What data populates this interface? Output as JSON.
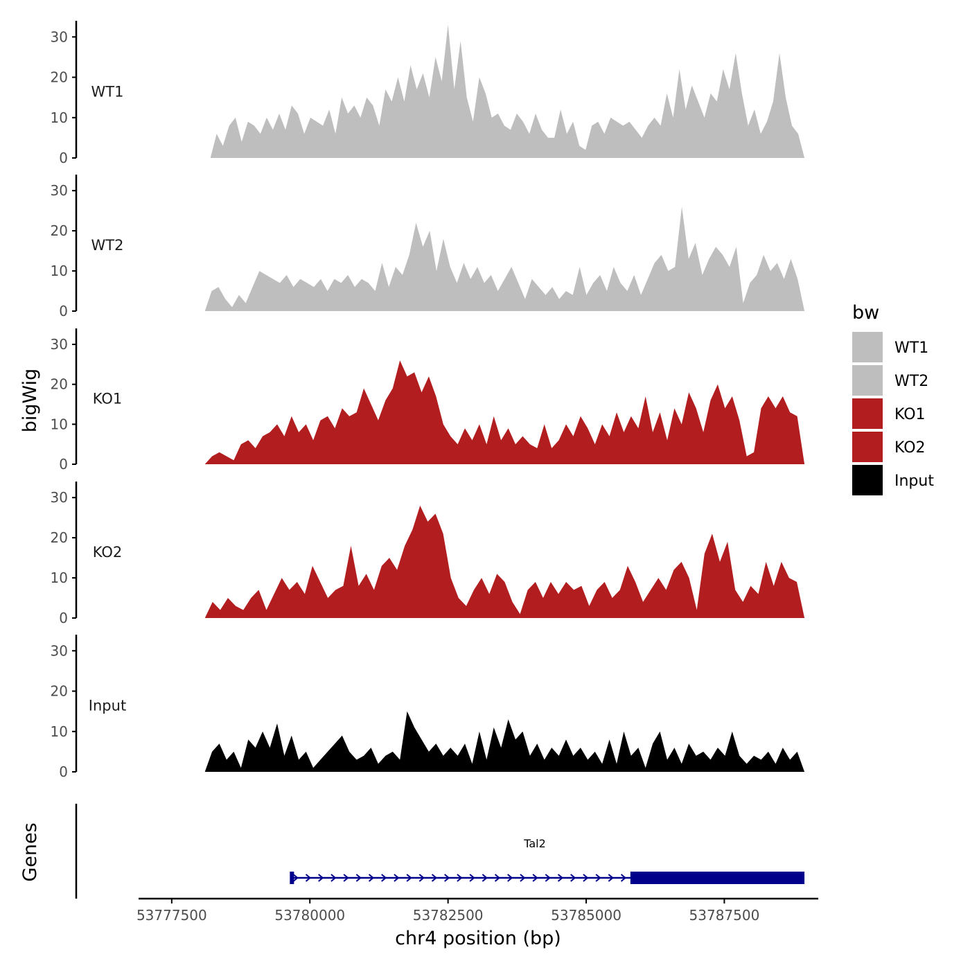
{
  "chart_data": {
    "type": "area",
    "ylabel": "bigWig",
    "xlabel": "chr4 position (bp)",
    "ylim": [
      0,
      34
    ],
    "y_ticks": [
      0,
      10,
      20,
      30
    ],
    "xlim": [
      53776900,
      53789200
    ],
    "x_ticks": [
      53777500,
      53780000,
      53782500,
      53785000,
      53787500
    ],
    "x_tick_labels": [
      "53777500",
      "53780000",
      "53782500",
      "53785000",
      "53787500"
    ],
    "legend": {
      "title": "bw",
      "placement": "right",
      "entries": [
        {
          "label": "WT1",
          "color": "#bebebe"
        },
        {
          "label": "WT2",
          "color": "#bebebe"
        },
        {
          "label": "KO1",
          "color": "#b21e1f"
        },
        {
          "label": "KO2",
          "color": "#b21e1f"
        },
        {
          "label": "Input",
          "color": "#000000"
        }
      ]
    },
    "series": [
      {
        "name": "WT1",
        "color": "#bebebe",
        "x_start": 53778200,
        "x_end": 53788950,
        "values": [
          0,
          6,
          3,
          8,
          10,
          4,
          9,
          8,
          6,
          10,
          7,
          11,
          7,
          13,
          11,
          6,
          10,
          9,
          8,
          12,
          6,
          15,
          11,
          13,
          10,
          15,
          13,
          8,
          17,
          14,
          20,
          14,
          23,
          17,
          21,
          15,
          25,
          19,
          33,
          17,
          29,
          15,
          9,
          20,
          16,
          10,
          11,
          8,
          7,
          11,
          9,
          6,
          11,
          7,
          5,
          5,
          12,
          6,
          9,
          3,
          2,
          8,
          9,
          6,
          10,
          9,
          8,
          9,
          7,
          5,
          8,
          10,
          8,
          16,
          10,
          22,
          12,
          18,
          14,
          10,
          16,
          14,
          22,
          17,
          26,
          16,
          8,
          12,
          6,
          9,
          14,
          26,
          15,
          8,
          6,
          0
        ]
      },
      {
        "name": "WT2",
        "color": "#bebebe",
        "x_start": 53778100,
        "x_end": 53788950,
        "values": [
          0,
          5,
          6,
          3,
          1,
          4,
          2,
          6,
          10,
          9,
          8,
          7,
          9,
          6,
          8,
          7,
          6,
          8,
          5,
          8,
          7,
          9,
          6,
          8,
          7,
          5,
          12,
          6,
          11,
          9,
          14,
          22,
          16,
          20,
          10,
          18,
          11,
          7,
          12,
          8,
          11,
          7,
          9,
          5,
          8,
          11,
          7,
          3,
          8,
          6,
          4,
          6,
          3,
          5,
          4,
          11,
          4,
          7,
          9,
          5,
          11,
          7,
          5,
          9,
          4,
          8,
          12,
          14,
          10,
          11,
          26,
          13,
          17,
          9,
          13,
          16,
          14,
          11,
          16,
          2,
          7,
          9,
          14,
          10,
          12,
          8,
          13,
          8,
          0
        ]
      },
      {
        "name": "KO1",
        "color": "#b21e1f",
        "x_start": 53778100,
        "x_end": 53788950,
        "values": [
          0,
          2,
          3,
          2,
          1,
          5,
          6,
          4,
          7,
          8,
          10,
          7,
          12,
          8,
          10,
          6,
          11,
          12,
          9,
          14,
          12,
          13,
          19,
          15,
          11,
          16,
          19,
          26,
          22,
          23,
          18,
          22,
          17,
          10,
          7,
          5,
          9,
          6,
          10,
          5,
          12,
          6,
          9,
          5,
          7,
          5,
          4,
          10,
          4,
          6,
          10,
          7,
          12,
          9,
          5,
          10,
          7,
          13,
          8,
          12,
          9,
          17,
          8,
          13,
          6,
          14,
          10,
          18,
          14,
          8,
          16,
          20,
          14,
          17,
          11,
          2,
          3,
          14,
          17,
          14,
          17,
          13,
          12,
          0
        ]
      },
      {
        "name": "KO2",
        "color": "#b21e1f",
        "x_start": 53778100,
        "x_end": 53788950,
        "values": [
          0,
          4,
          2,
          5,
          3,
          2,
          5,
          7,
          2,
          6,
          10,
          7,
          9,
          6,
          13,
          9,
          5,
          7,
          8,
          18,
          8,
          11,
          7,
          13,
          15,
          12,
          18,
          22,
          28,
          24,
          26,
          21,
          10,
          5,
          3,
          7,
          10,
          6,
          11,
          9,
          4,
          1,
          7,
          9,
          5,
          9,
          6,
          9,
          7,
          8,
          3,
          7,
          9,
          5,
          7,
          13,
          9,
          4,
          7,
          10,
          7,
          12,
          14,
          10,
          2,
          16,
          21,
          14,
          19,
          7,
          4,
          8,
          6,
          14,
          8,
          14,
          10,
          9,
          0
        ]
      },
      {
        "name": "Input",
        "color": "#000000",
        "x_start": 53778100,
        "x_end": 53788950,
        "values": [
          0,
          5,
          7,
          3,
          5,
          1,
          8,
          6,
          10,
          6,
          12,
          4,
          9,
          3,
          5,
          1,
          3,
          5,
          7,
          9,
          5,
          3,
          4,
          6,
          2,
          4,
          5,
          3,
          15,
          11,
          8,
          5,
          7,
          4,
          6,
          4,
          7,
          2,
          10,
          3,
          11,
          6,
          13,
          8,
          10,
          4,
          7,
          3,
          6,
          4,
          8,
          4,
          6,
          3,
          5,
          2,
          8,
          2,
          10,
          4,
          6,
          1,
          7,
          10,
          3,
          6,
          2,
          7,
          4,
          5,
          3,
          6,
          4,
          10,
          4,
          2,
          4,
          3,
          5,
          2,
          6,
          3,
          5,
          0
        ]
      }
    ],
    "genes_track": {
      "label": "Genes",
      "genes": [
        {
          "name": "Tal2",
          "start": 53779650,
          "end": 53788950,
          "thick_start": 53785800,
          "strand": "+",
          "color": "#00008b"
        }
      ]
    }
  }
}
